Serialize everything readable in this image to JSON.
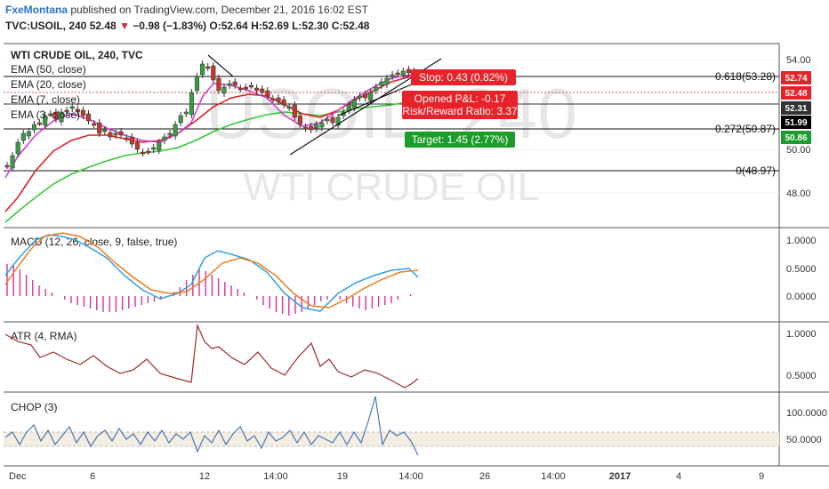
{
  "header": {
    "author": "FxeMontana",
    "published": "published on TradingView.com, December 21, 2016 16:02 EST",
    "symbol_line_start": "TVC:USOIL, 240  52.48",
    "change_arrow": "▼",
    "change": "−0.98 (−1.83%)",
    "ohlc": "O:52.64 H:52.69 L:52.30 C:52.48"
  },
  "main": {
    "title": "WTI CRUDE OIL, 240, TVC",
    "watermark_symbol": "USOIL, 240",
    "watermark_name": "WTI CRUDE OIL",
    "legend": [
      "EMA (50, close)",
      "EMA (20, close)",
      "EMA (7, close)",
      "EMA (3, close)"
    ],
    "fib_labels": [
      "0.618(53.28)",
      "0.272(50.87)",
      "0(48.97)"
    ],
    "stop_label": "Stop: 0.43 (0.82%)",
    "pnl_label": "Opened P&L: -0.17",
    "rr_label": "Risk/Reward Ratio: 3.37",
    "target_label": "Target: 1.45 (2.77%)",
    "price_axis": [
      "54.00",
      "50.00",
      "48.00"
    ],
    "price_tags": [
      {
        "text": "52.74",
        "bg": "#e8222a"
      },
      {
        "text": "52.48",
        "bg": "#e8222a"
      },
      {
        "text": "52.31",
        "bg": "#333333"
      },
      {
        "text": "51.99",
        "bg": "#000000"
      },
      {
        "text": "50.86",
        "bg": "#1c9c2a"
      }
    ]
  },
  "macd": {
    "title": "MACD (12, 26, close, 9, false, true)",
    "axis": [
      "1.0000",
      "0.5000",
      "0.0000"
    ]
  },
  "atr": {
    "title": "ATR (4, RMA)",
    "axis": [
      "1.0000",
      "0.5000"
    ]
  },
  "chop": {
    "title": "CHOP (3)",
    "axis": [
      "100.0000",
      "50.0000"
    ]
  },
  "time_axis": [
    "Dec",
    "6",
    "12",
    "14:00",
    "19",
    "14:00",
    "26",
    "14:00",
    "2017",
    "4",
    "9"
  ],
  "colors": {
    "up": "#3a9b47",
    "down": "#c0392b",
    "ema50": "#37c837",
    "ema20": "#e02020",
    "ema7": "#d23fd2",
    "macd": "#2fa0e0",
    "signal": "#f07b1e",
    "hist": "#d4329a",
    "atr": "#9e2a2a",
    "chop": "#4a76b8"
  }
}
